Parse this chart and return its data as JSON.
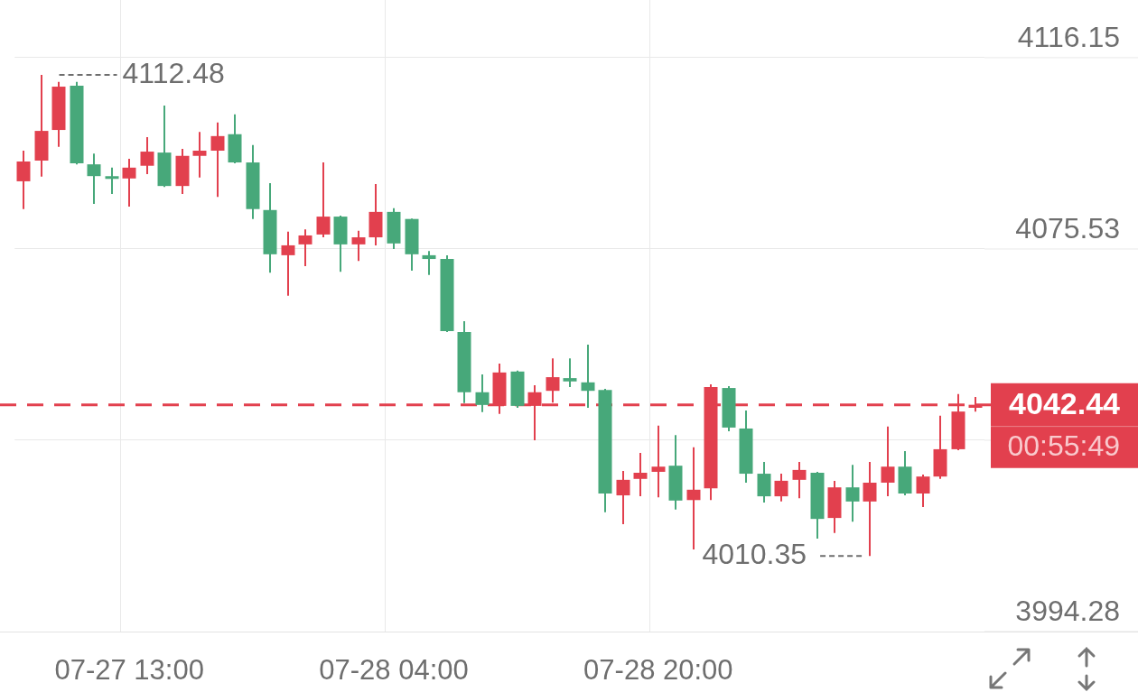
{
  "chart_data": {
    "type": "candlestick",
    "categories": [
      null,
      null,
      null,
      null,
      null,
      null,
      "07-27 13:00",
      null,
      null,
      null,
      null,
      null,
      null,
      null,
      null,
      null,
      null,
      null,
      null,
      null,
      null,
      "07-28 04:00",
      null,
      null,
      null,
      null,
      null,
      null,
      null,
      null,
      null,
      null,
      null,
      null,
      null,
      null,
      "07-28 20:00",
      null,
      null,
      null,
      null,
      null,
      null,
      null,
      null,
      null,
      null,
      null,
      null,
      null,
      null,
      null,
      null,
      null,
      null
    ],
    "ohlc": [
      [
        4089.9,
        4096.4,
        4084.0,
        4094.1
      ],
      [
        4094.3,
        4112.48,
        4090.9,
        4100.6
      ],
      [
        4100.8,
        4111.0,
        4097.2,
        4110.0
      ],
      [
        4110.2,
        4111.0,
        4093.5,
        4093.7
      ],
      [
        4093.5,
        4095.8,
        4085.1,
        4091.0
      ],
      [
        4090.9,
        4092.8,
        4087.2,
        4090.5
      ],
      [
        4090.5,
        4094.7,
        4084.5,
        4092.8
      ],
      [
        4093.2,
        4099.3,
        4091.4,
        4096.2
      ],
      [
        4096.0,
        4106.0,
        4088.7,
        4088.9
      ],
      [
        4088.9,
        4096.8,
        4087.2,
        4095.3
      ],
      [
        4095.3,
        4100.4,
        4090.7,
        4096.4
      ],
      [
        4096.4,
        4102.4,
        4086.6,
        4099.5
      ],
      [
        4099.9,
        4104.1,
        4093.7,
        4093.9
      ],
      [
        4093.9,
        4097.6,
        4081.9,
        4084.0
      ],
      [
        4083.8,
        4089.5,
        4070.5,
        4074.4
      ],
      [
        4074.2,
        4079.2,
        4065.6,
        4076.3
      ],
      [
        4076.5,
        4079.7,
        4071.9,
        4078.4
      ],
      [
        4078.6,
        4093.9,
        4078.0,
        4082.4
      ],
      [
        4082.4,
        4082.6,
        4070.7,
        4076.5
      ],
      [
        4076.5,
        4079.4,
        4073.0,
        4078.0
      ],
      [
        4078.0,
        4089.3,
        4076.3,
        4083.4
      ],
      [
        4083.4,
        4084.2,
        4075.5,
        4076.7
      ],
      [
        4081.9,
        4082.0,
        4070.9,
        4074.4
      ],
      [
        4074.2,
        4075.1,
        4070.0,
        4073.4
      ],
      [
        4073.4,
        4074.2,
        4057.9,
        4058.1
      ],
      [
        4057.9,
        4060.2,
        4042.8,
        4045.1
      ],
      [
        4045.1,
        4048.9,
        4040.9,
        4042.4
      ],
      [
        4042.2,
        4051.2,
        4040.5,
        4049.3
      ],
      [
        4049.5,
        4049.7,
        4041.8,
        4042.2
      ],
      [
        4042.2,
        4046.6,
        4034.9,
        4045.1
      ],
      [
        4045.4,
        4052.3,
        4042.9,
        4048.3
      ],
      [
        4048.1,
        4052.3,
        4046.2,
        4047.4
      ],
      [
        4047.2,
        4055.2,
        4041.8,
        4045.4
      ],
      [
        4045.6,
        4045.8,
        4019.6,
        4023.6
      ],
      [
        4023.2,
        4028.4,
        4017.1,
        4026.5
      ],
      [
        4026.7,
        4032.2,
        4023.0,
        4028.0
      ],
      [
        4028.2,
        4038.0,
        4022.8,
        4029.3
      ],
      [
        4029.5,
        4036.0,
        4020.2,
        4022.1
      ],
      [
        4022.2,
        4033.4,
        4011.7,
        4024.4
      ],
      [
        4024.7,
        4046.8,
        4022.2,
        4046.2
      ],
      [
        4046.0,
        4046.4,
        4036.8,
        4037.6
      ],
      [
        4037.4,
        4041.2,
        4025.9,
        4027.8
      ],
      [
        4027.8,
        4030.3,
        4021.7,
        4023.0
      ],
      [
        4023.0,
        4027.8,
        4021.9,
        4026.3
      ],
      [
        4026.5,
        4030.3,
        4022.6,
        4028.6
      ],
      [
        4028.0,
        4028.2,
        4014.0,
        4018.2
      ],
      [
        4018.4,
        4026.3,
        4015.2,
        4024.9
      ],
      [
        4024.9,
        4029.7,
        4017.6,
        4021.9
      ],
      [
        4021.9,
        4030.3,
        4010.35,
        4025.9
      ],
      [
        4025.9,
        4037.8,
        4023.0,
        4029.3
      ],
      [
        4029.3,
        4032.6,
        4023.2,
        4023.6
      ],
      [
        4023.6,
        4027.6,
        4020.7,
        4027.2
      ],
      [
        4027.2,
        4040.1,
        4026.7,
        4033.0
      ],
      [
        4033.0,
        4044.7,
        4032.8,
        4041.0
      ],
      [
        4041.8,
        4044.1,
        4041.0,
        4042.44
      ]
    ],
    "colors": [
      "#e2404e",
      "#e2404e",
      "#e2404e",
      "#47a87a",
      "#47a87a",
      "#47a87a",
      "#e2404e",
      "#e2404e",
      "#47a87a",
      "#e2404e",
      "#e2404e",
      "#e2404e",
      "#47a87a",
      "#47a87a",
      "#47a87a",
      "#e2404e",
      "#e2404e",
      "#e2404e",
      "#47a87a",
      "#e2404e",
      "#e2404e",
      "#47a87a",
      "#47a87a",
      "#47a87a",
      "#47a87a",
      "#47a87a",
      "#47a87a",
      "#e2404e",
      "#47a87a",
      "#e2404e",
      "#e2404e",
      "#47a87a",
      "#47a87a",
      "#47a87a",
      "#e2404e",
      "#e2404e",
      "#e2404e",
      "#47a87a",
      "#e2404e",
      "#e2404e",
      "#47a87a",
      "#47a87a",
      "#47a87a",
      "#e2404e",
      "#e2404e",
      "#47a87a",
      "#e2404e",
      "#47a87a",
      "#e2404e",
      "#e2404e",
      "#47a87a",
      "#e2404e",
      "#e2404e",
      "#e2404e",
      "#e2404e"
    ],
    "ylim": [
      3994.28,
      4128.4
    ],
    "yticks": [
      3994.28,
      {
        "value": 4034.91,
        "label": null
      },
      4075.53,
      4116.15
    ],
    "grid": true,
    "legend": false,
    "ref_lines": [
      {
        "axis": "y",
        "value": 4042.44,
        "label": "4042.44",
        "color": "#e2404e",
        "line_style": "dashed"
      }
    ],
    "annotations": [
      "4112.48",
      "4010.35",
      "00:55:49"
    ]
  }
}
